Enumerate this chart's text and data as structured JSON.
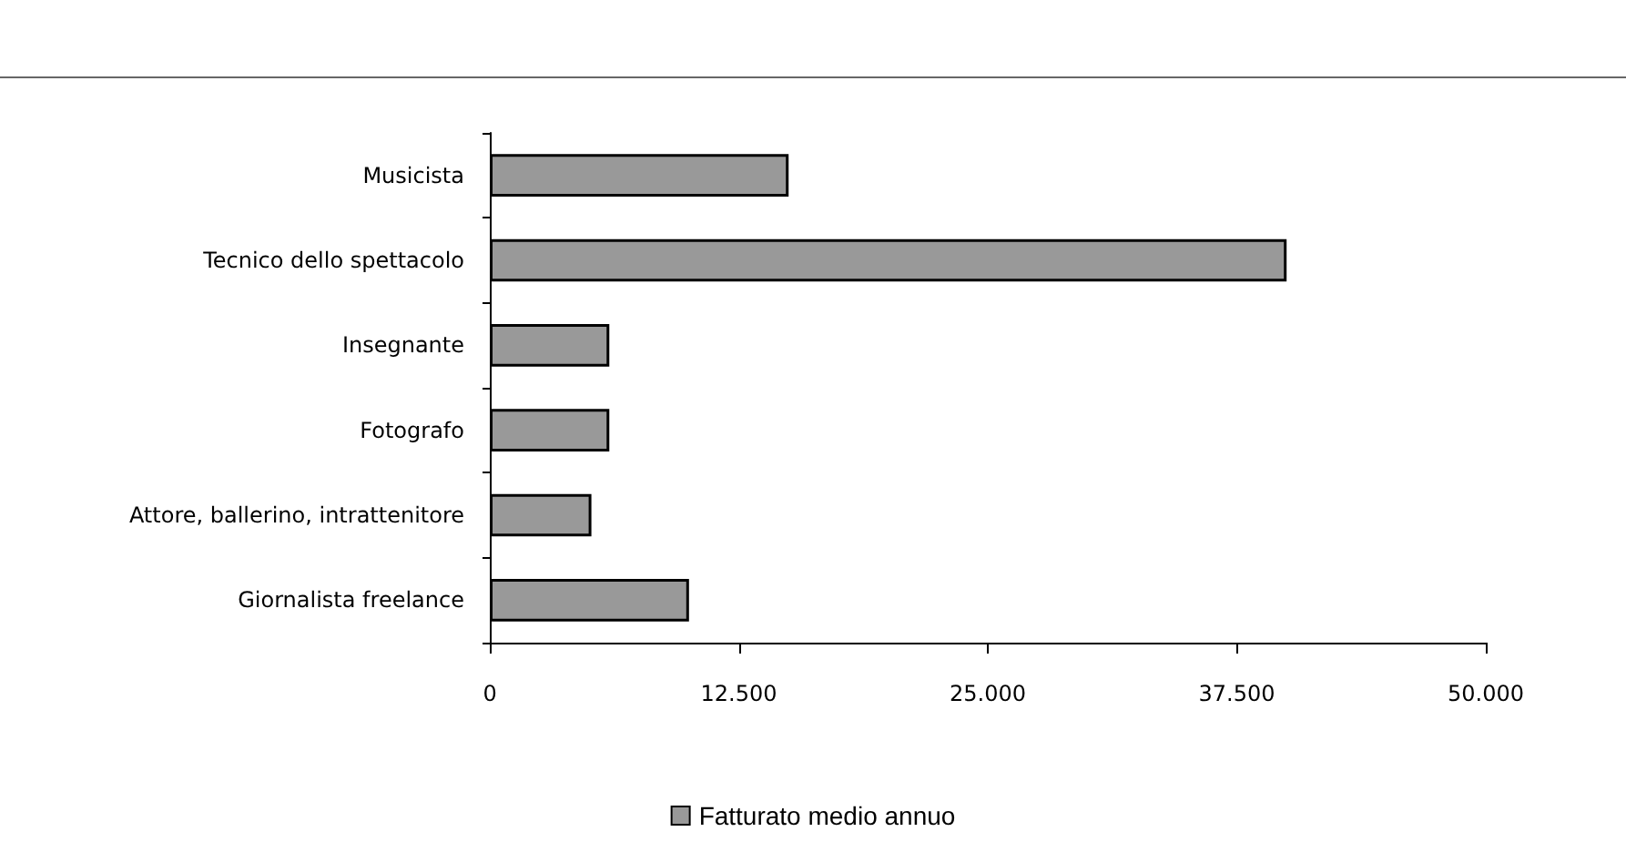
{
  "chart_data": {
    "type": "bar",
    "orientation": "horizontal",
    "categories": [
      "Musicista",
      "Tecnico dello spettacolo",
      "Insegnante",
      "Fotografo",
      "Attore, ballerino, intrattenitore",
      "Giornalista freelance"
    ],
    "series": [
      {
        "name": "Fatturato medio annuo",
        "color": "#999999",
        "values": [
          15000,
          40000,
          6000,
          6000,
          5100,
          10000
        ]
      }
    ],
    "xlim": [
      0,
      50000
    ],
    "xticks": [
      0,
      {
        "value": 12500,
        "label": "12.500"
      },
      {
        "value": 25000,
        "label": "25.000"
      },
      {
        "value": 37500,
        "label": "37.500"
      },
      {
        "value": 50000,
        "label": "50.000"
      }
    ],
    "grid": false,
    "legend": "bottom"
  }
}
